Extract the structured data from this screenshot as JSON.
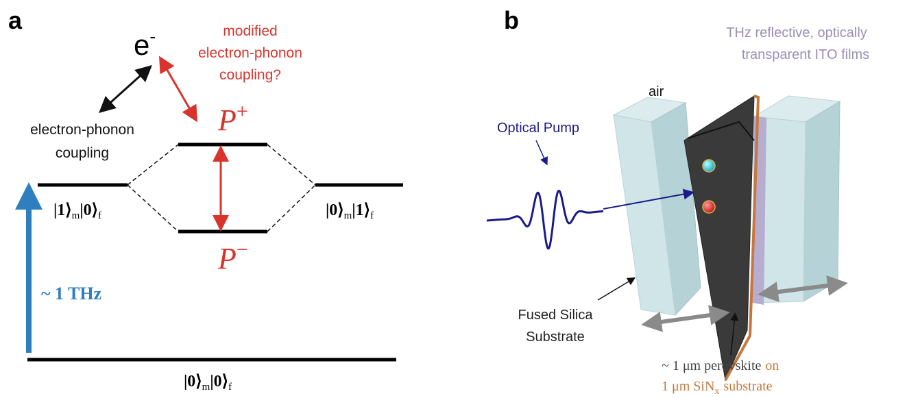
{
  "panel_a": {
    "label": "a",
    "electron": {
      "symbol": "e",
      "charge": "-"
    },
    "modified_coupling": [
      "modified",
      "electron-phonon",
      "coupling?"
    ],
    "coupling": [
      "electron-phonon",
      "coupling"
    ],
    "upper_polariton": {
      "symbol": "P",
      "sign": "+"
    },
    "lower_polariton": {
      "symbol": "P",
      "sign": "−"
    },
    "left_state": {
      "ket1": "|1⟩",
      "sub1": "m",
      "ket2": "|0⟩",
      "sub2": "f"
    },
    "right_state": {
      "ket1": "|0⟩",
      "sub1": "m",
      "ket2": "|1⟩",
      "sub2": "f"
    },
    "frequency": "~ 1 THz",
    "ground_state": {
      "ket1": "|0⟩",
      "sub1": "m",
      "ket2": "|0⟩",
      "sub2": "f"
    }
  },
  "panel_b": {
    "label": "b",
    "ito_films": [
      "THz reflective, optically",
      "transparent ITO films"
    ],
    "air": "air",
    "pump": "Optical Pump",
    "substrate": [
      "Fused Silica",
      "Substrate"
    ],
    "sample_line1": {
      "text": "~ 1 μm perovskite",
      "connector": "on"
    },
    "sample_line2": {
      "text": "1 μm SiN",
      "sub": "x",
      "suffix": "substrate"
    }
  }
}
